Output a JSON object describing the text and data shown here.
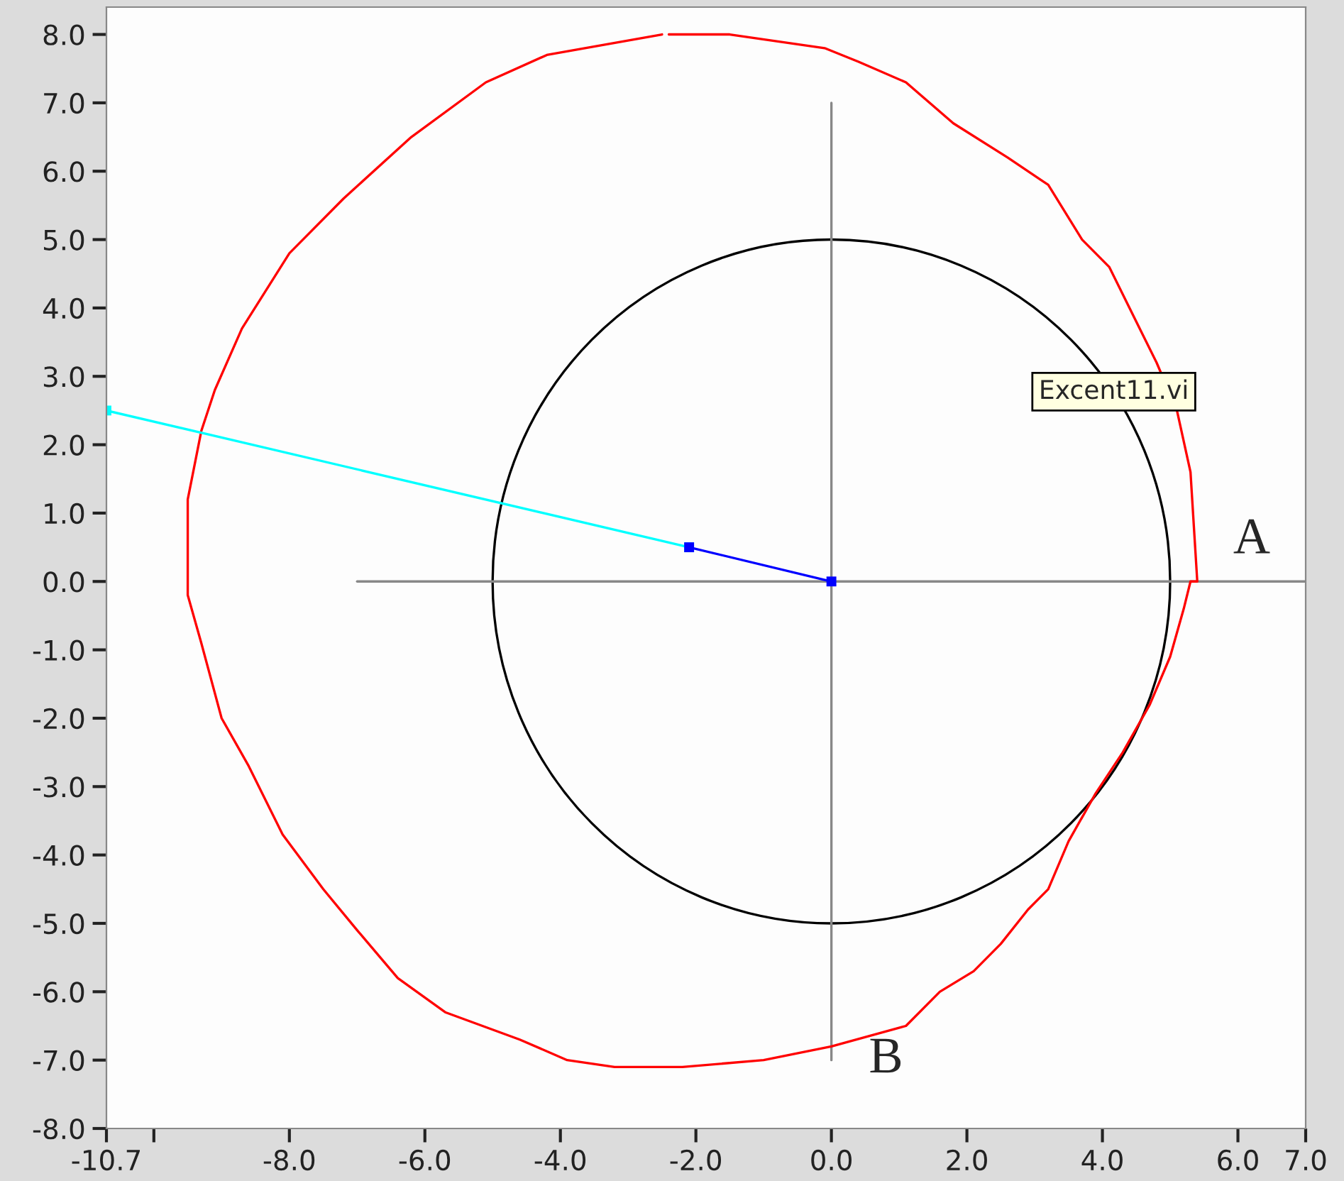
{
  "chart_data": {
    "type": "line",
    "xlim": [
      -10.7,
      7
    ],
    "ylim": [
      -8,
      8.4
    ],
    "xticks": [
      {
        "value": -10.7,
        "label": "-10.7"
      },
      {
        "value": -10,
        "label": null
      },
      {
        "value": -8,
        "label": "-8.0"
      },
      {
        "value": -6,
        "label": "-6.0"
      },
      {
        "value": -4,
        "label": "-4.0"
      },
      {
        "value": -2,
        "label": "-2.0"
      },
      {
        "value": 0,
        "label": "0.0"
      },
      {
        "value": 2,
        "label": "2.0"
      },
      {
        "value": 4,
        "label": "4.0"
      },
      {
        "value": 6,
        "label": "6.0"
      },
      {
        "value": 7,
        "label": "7.0"
      }
    ],
    "yticks": [
      {
        "value": -8,
        "label": "-8.0"
      },
      {
        "value": -7,
        "label": "-7.0"
      },
      {
        "value": -6,
        "label": "-6.0"
      },
      {
        "value": -5,
        "label": "-5.0"
      },
      {
        "value": -4,
        "label": "-4.0"
      },
      {
        "value": -3,
        "label": "-3.0"
      },
      {
        "value": -2,
        "label": "-2.0"
      },
      {
        "value": -1,
        "label": "-1.0"
      },
      {
        "value": 0,
        "label": "0.0"
      },
      {
        "value": 1,
        "label": "1.0"
      },
      {
        "value": 2,
        "label": "2.0"
      },
      {
        "value": 3,
        "label": "3.0"
      },
      {
        "value": 4,
        "label": "4.0"
      },
      {
        "value": 5,
        "label": "5.0"
      },
      {
        "value": 6,
        "label": "6.0"
      },
      {
        "value": 7,
        "label": "7.0"
      },
      {
        "value": 8,
        "label": "8.0"
      }
    ],
    "grid": false,
    "series": [
      {
        "color": "#888888",
        "x": [
          -7,
          7
        ],
        "values": [
          0,
          0
        ]
      },
      {
        "color": "#888888",
        "x": [
          0,
          0
        ],
        "values": [
          7,
          -7
        ]
      },
      {
        "color": "#ff0000",
        "x": [
          -2.5,
          -4.2,
          -5.1,
          -6.2,
          -7.2,
          -8.0,
          -8.7,
          -9.1,
          -9.3,
          -9.5,
          -9.5,
          -9.5,
          -9.3,
          -9.0,
          -8.6,
          -8.1,
          -7.5,
          -7.0,
          -6.4,
          -5.7,
          -4.6,
          -3.9,
          -3.2,
          -2.2,
          -1.0,
          0.0,
          1.1,
          1.6,
          2.1,
          2.5,
          2.9,
          3.2,
          3.5,
          3.9,
          4.3,
          4.7,
          5.0,
          5.2,
          5.3,
          5.4,
          5.3,
          5.1,
          4.8,
          4.5,
          4.1,
          3.7,
          3.2,
          2.6,
          1.8,
          1.1,
          0.4,
          -0.1,
          -1.5,
          -2.4
        ],
        "values": [
          8.0,
          7.7,
          7.3,
          6.5,
          5.6,
          4.8,
          3.7,
          2.8,
          2.2,
          1.2,
          0.5,
          -0.2,
          -0.9,
          -2.0,
          -2.7,
          -3.7,
          -4.5,
          -5.1,
          -5.8,
          -6.3,
          -6.7,
          -7.0,
          -7.1,
          -7.1,
          -7.0,
          -6.8,
          -6.5,
          -6.0,
          -5.7,
          -5.3,
          -4.8,
          -4.5,
          -3.8,
          -3.1,
          -2.5,
          -1.8,
          -1.1,
          -0.4,
          0.0,
          0.0,
          1.6,
          2.5,
          3.2,
          3.8,
          4.6,
          5.0,
          5.8,
          6.2,
          6.7,
          7.3,
          7.6,
          7.8,
          8.0,
          8.0
        ]
      },
      {
        "color": "#00ffff",
        "marker": "square",
        "x": [
          -10.7,
          -2.1
        ],
        "values": [
          2.5,
          0.5
        ]
      },
      {
        "color": "#0000ff",
        "marker": "square",
        "x": [
          -2.1,
          0
        ],
        "values": [
          0.5,
          0
        ]
      }
    ],
    "annotations": [
      "Excent11.vi",
      "A",
      "B"
    ]
  }
}
